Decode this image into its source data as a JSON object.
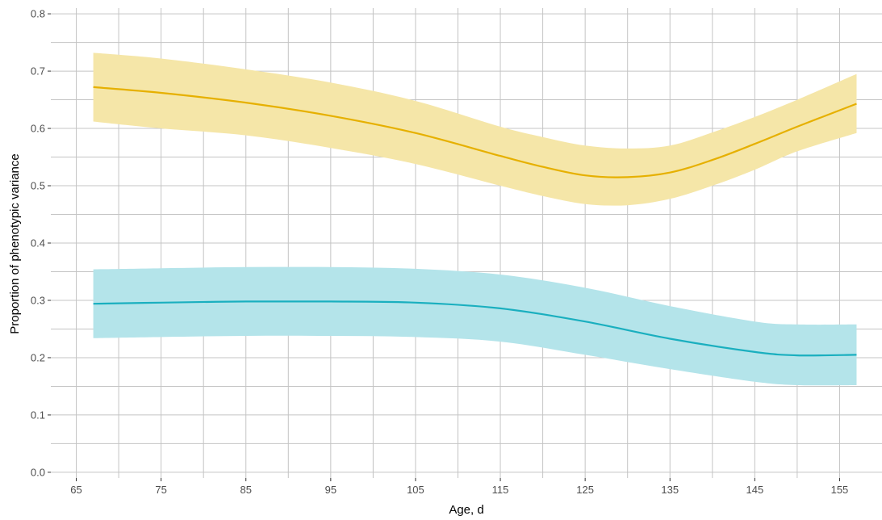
{
  "chart_data": {
    "type": "line",
    "xlabel": "Age, d",
    "ylabel": "Proportion of phenotypic variance",
    "xlim": [
      62,
      160
    ],
    "ylim": [
      -0.01,
      0.81
    ],
    "xticks": [
      65,
      75,
      85,
      95,
      105,
      115,
      125,
      135,
      145,
      155
    ],
    "yticks": [
      0.0,
      0.1,
      0.2,
      0.3,
      0.4,
      0.5,
      0.6,
      0.7,
      0.8
    ],
    "xtick_labels": [
      "65",
      "75",
      "85",
      "95",
      "105",
      "115",
      "125",
      "135",
      "145",
      "155"
    ],
    "ytick_labels": [
      "0.0",
      "0.1",
      "0.2",
      "0.3",
      "0.4",
      "0.5",
      "0.6",
      "0.7",
      "0.8"
    ],
    "grid": true,
    "series": [
      {
        "color": "#e6b000",
        "band_color": "#f5e6a8",
        "x": [
          67,
          75,
          85,
          95,
          105,
          115,
          120,
          125,
          130,
          135,
          140,
          145,
          150,
          157
        ],
        "y": [
          0.672,
          0.662,
          0.645,
          0.622,
          0.592,
          0.552,
          0.533,
          0.518,
          0.515,
          0.523,
          0.545,
          0.573,
          0.603,
          0.643
        ],
        "lower": [
          0.612,
          0.6,
          0.588,
          0.566,
          0.538,
          0.5,
          0.482,
          0.468,
          0.466,
          0.477,
          0.5,
          0.528,
          0.56,
          0.592
        ],
        "upper": [
          0.732,
          0.722,
          0.703,
          0.68,
          0.648,
          0.603,
          0.585,
          0.57,
          0.565,
          0.57,
          0.593,
          0.62,
          0.65,
          0.695
        ]
      },
      {
        "color": "#1aafbf",
        "band_color": "#b4e4ea",
        "x": [
          67,
          75,
          85,
          95,
          105,
          115,
          125,
          135,
          145,
          150,
          157
        ],
        "y": [
          0.294,
          0.296,
          0.298,
          0.298,
          0.296,
          0.286,
          0.263,
          0.233,
          0.21,
          0.204,
          0.205
        ],
        "lower": [
          0.234,
          0.236,
          0.238,
          0.238,
          0.236,
          0.228,
          0.205,
          0.18,
          0.158,
          0.152,
          0.152
        ],
        "upper": [
          0.354,
          0.356,
          0.358,
          0.358,
          0.355,
          0.345,
          0.322,
          0.29,
          0.263,
          0.258,
          0.258
        ]
      }
    ]
  }
}
